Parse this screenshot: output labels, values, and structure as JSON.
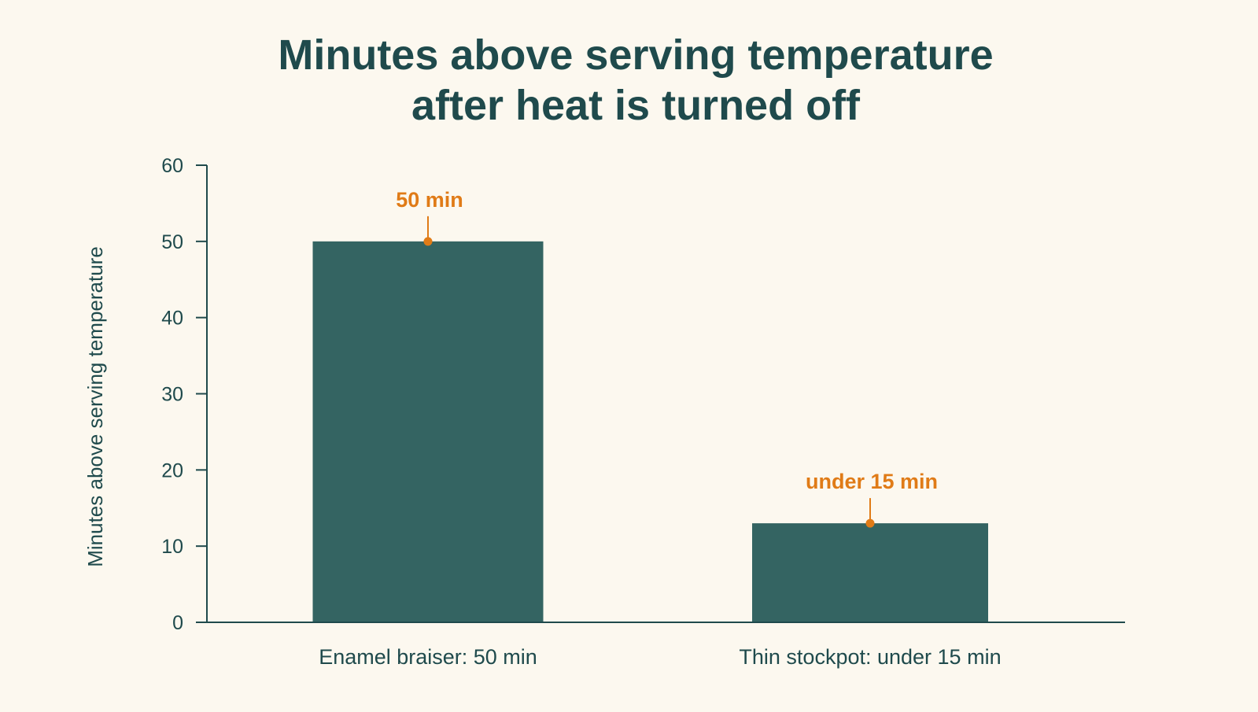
{
  "chart_data": {
    "type": "bar",
    "title_lines": [
      "Minutes above serving temperature",
      "after heat is turned off"
    ],
    "xlabel": "",
    "ylabel": "Minutes above serving temperature",
    "ylim": [
      0,
      60
    ],
    "yticks": [
      0,
      10,
      20,
      30,
      40,
      50,
      60
    ],
    "categories": [
      "Enamel braiser: 50 min",
      "Thin stockpot: under 15 min"
    ],
    "values": [
      50,
      13
    ],
    "data_labels": [
      "50 min",
      "under 15 min"
    ],
    "grid": false,
    "legend": "none"
  },
  "colors": {
    "background": "#fcf8ef",
    "bar": "#346462",
    "text": "#1f4a4c",
    "accent": "#e07b17",
    "axis": "#1f4a4c"
  }
}
